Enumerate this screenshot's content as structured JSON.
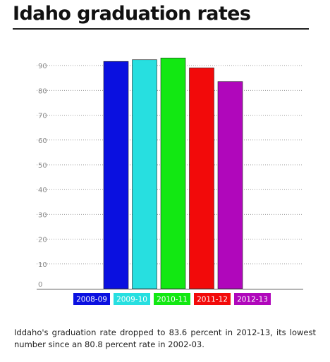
{
  "header": {
    "title": "Idaho graduation rates"
  },
  "caption": "Iddaho's graduation rate dropped to 83.6 percent in 2012-13, its lowest number since an 80.8 percent rate in 2002-03.",
  "chart_data": {
    "type": "bar",
    "categories": [
      "2008-09",
      "2009-10",
      "2010-11",
      "2011-12",
      "2012-13"
    ],
    "values": [
      91.7,
      92.4,
      93.1,
      89.1,
      83.6
    ],
    "colors": [
      "#0a10e0",
      "#27dfe0",
      "#12e812",
      "#f20a0a",
      "#b007bb"
    ],
    "yticks": [
      0,
      10,
      20,
      30,
      40,
      50,
      60,
      70,
      80,
      90
    ],
    "ylim": [
      0,
      100
    ],
    "grid": true,
    "gridstyle": "dotted",
    "legend": "bottom"
  }
}
